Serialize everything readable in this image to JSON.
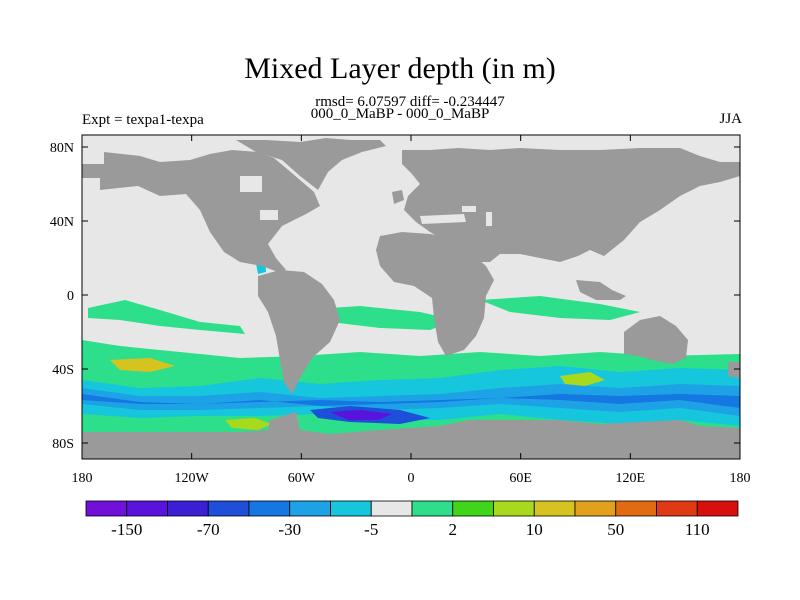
{
  "title": "Mixed Layer depth (in m)",
  "stats_line": "rmsd= 6.07597 diff= -0.234447",
  "subtitle": "000_0_MaBP - 000_0_MaBP",
  "left_label": "Expt = texpa1-texpa",
  "right_label": "JJA",
  "x_ticks": [
    "180",
    "120W",
    "60W",
    "0",
    "60E",
    "120E",
    "180"
  ],
  "y_ticks": [
    "80N",
    "40N",
    "0",
    "40S",
    "80S"
  ],
  "colors": {
    "land": "#9a9a9a",
    "neutral": "#e7e7e7",
    "palette": [
      "#7010d8",
      "#5a12dd",
      "#3a1fd4",
      "#1d4fd8",
      "#1477e2",
      "#1ea2e6",
      "#16c6dc",
      "#e7e7e7",
      "#2ddf8a",
      "#40d51b",
      "#a9d91c",
      "#d6c320",
      "#e2a11d",
      "#e26b12",
      "#df3a14",
      "#d8100c"
    ]
  },
  "colorbar": {
    "labels": [
      "-150",
      "-70",
      "-30",
      "-5",
      "2",
      "10",
      "50",
      "110"
    ]
  }
}
